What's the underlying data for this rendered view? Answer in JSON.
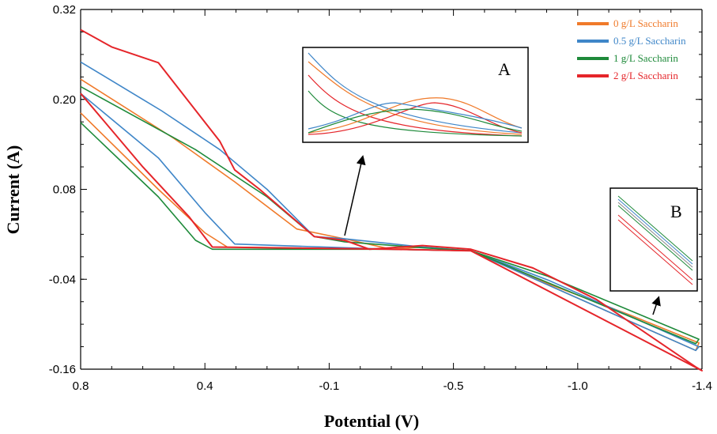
{
  "chart_data": {
    "type": "line",
    "xlabel": "Potential (V)",
    "ylabel": "Current (A)",
    "xticks": [
      "0.8",
      "0.4",
      "-0.1",
      "-0.5",
      "-1.0",
      "-1.4"
    ],
    "yticks": [
      "0.32",
      "0.20",
      "0.08",
      "-0.04",
      "-0.16"
    ],
    "ylim": [
      -0.16,
      0.32
    ],
    "grid": false,
    "legend_position": "top-right",
    "insets": [
      "A",
      "B"
    ],
    "series": [
      {
        "name": "0 g/L Saccharin",
        "color": "#f07a2a",
        "x": [
          0.8,
          0.5,
          0.28,
          0.03,
          -0.15,
          -0.3,
          -0.4,
          -0.57,
          -0.88,
          -1.17,
          -1.39,
          -1.38,
          -0.57,
          -0.3,
          0.31,
          0.4,
          0.55,
          0.8
        ],
        "y": [
          0.227,
          0.148,
          0.09,
          0.027,
          0.014,
          0.0,
          0.003,
          -0.002,
          -0.046,
          -0.088,
          -0.125,
          -0.135,
          -0.002,
          0.0,
          0.003,
          0.022,
          0.08,
          0.182
        ]
      },
      {
        "name": "0.5 g/L Saccharin",
        "color": "#3f86c8",
        "x": [
          0.8,
          0.54,
          0.34,
          0.15,
          -0.04,
          -0.15,
          -0.4,
          -0.57,
          -0.88,
          -1.39,
          -1.38,
          -0.57,
          -0.3,
          0.28,
          0.4,
          0.55,
          0.8
        ],
        "y": [
          0.25,
          0.185,
          0.133,
          0.08,
          0.017,
          0.014,
          0.003,
          -0.002,
          -0.041,
          -0.13,
          -0.135,
          -0.002,
          0.0,
          0.007,
          0.049,
          0.122,
          0.208
        ]
      },
      {
        "name": "1 g/L Saccharin",
        "color": "#1e8a3a",
        "x": [
          0.8,
          0.43,
          0.15,
          -0.04,
          -0.15,
          -0.4,
          -0.57,
          -0.88,
          -1.39,
          -1.38,
          -0.57,
          -0.3,
          0.37,
          0.43,
          0.55,
          0.8
        ],
        "y": [
          0.217,
          0.133,
          0.07,
          0.017,
          0.01,
          0.002,
          -0.002,
          -0.036,
          -0.12,
          -0.126,
          -0.002,
          0.0,
          0.0,
          0.012,
          0.07,
          0.169
        ]
      },
      {
        "name": "2 g/L Saccharin",
        "color": "#e5252a",
        "x": [
          0.8,
          0.7,
          0.55,
          0.34,
          0.28,
          0.18,
          -0.04,
          -0.15,
          -0.23,
          -0.4,
          -0.57,
          -0.82,
          -1.06,
          -1.38,
          -1.4,
          -0.57,
          -0.3,
          0.37,
          0.45,
          0.6,
          0.8
        ],
        "y": [
          0.293,
          0.27,
          0.249,
          0.144,
          0.106,
          0.08,
          0.017,
          0.012,
          0.0,
          0.005,
          0.0,
          -0.025,
          -0.067,
          -0.157,
          -0.162,
          -0.002,
          0.0,
          0.003,
          0.043,
          0.11,
          0.208
        ]
      }
    ]
  }
}
